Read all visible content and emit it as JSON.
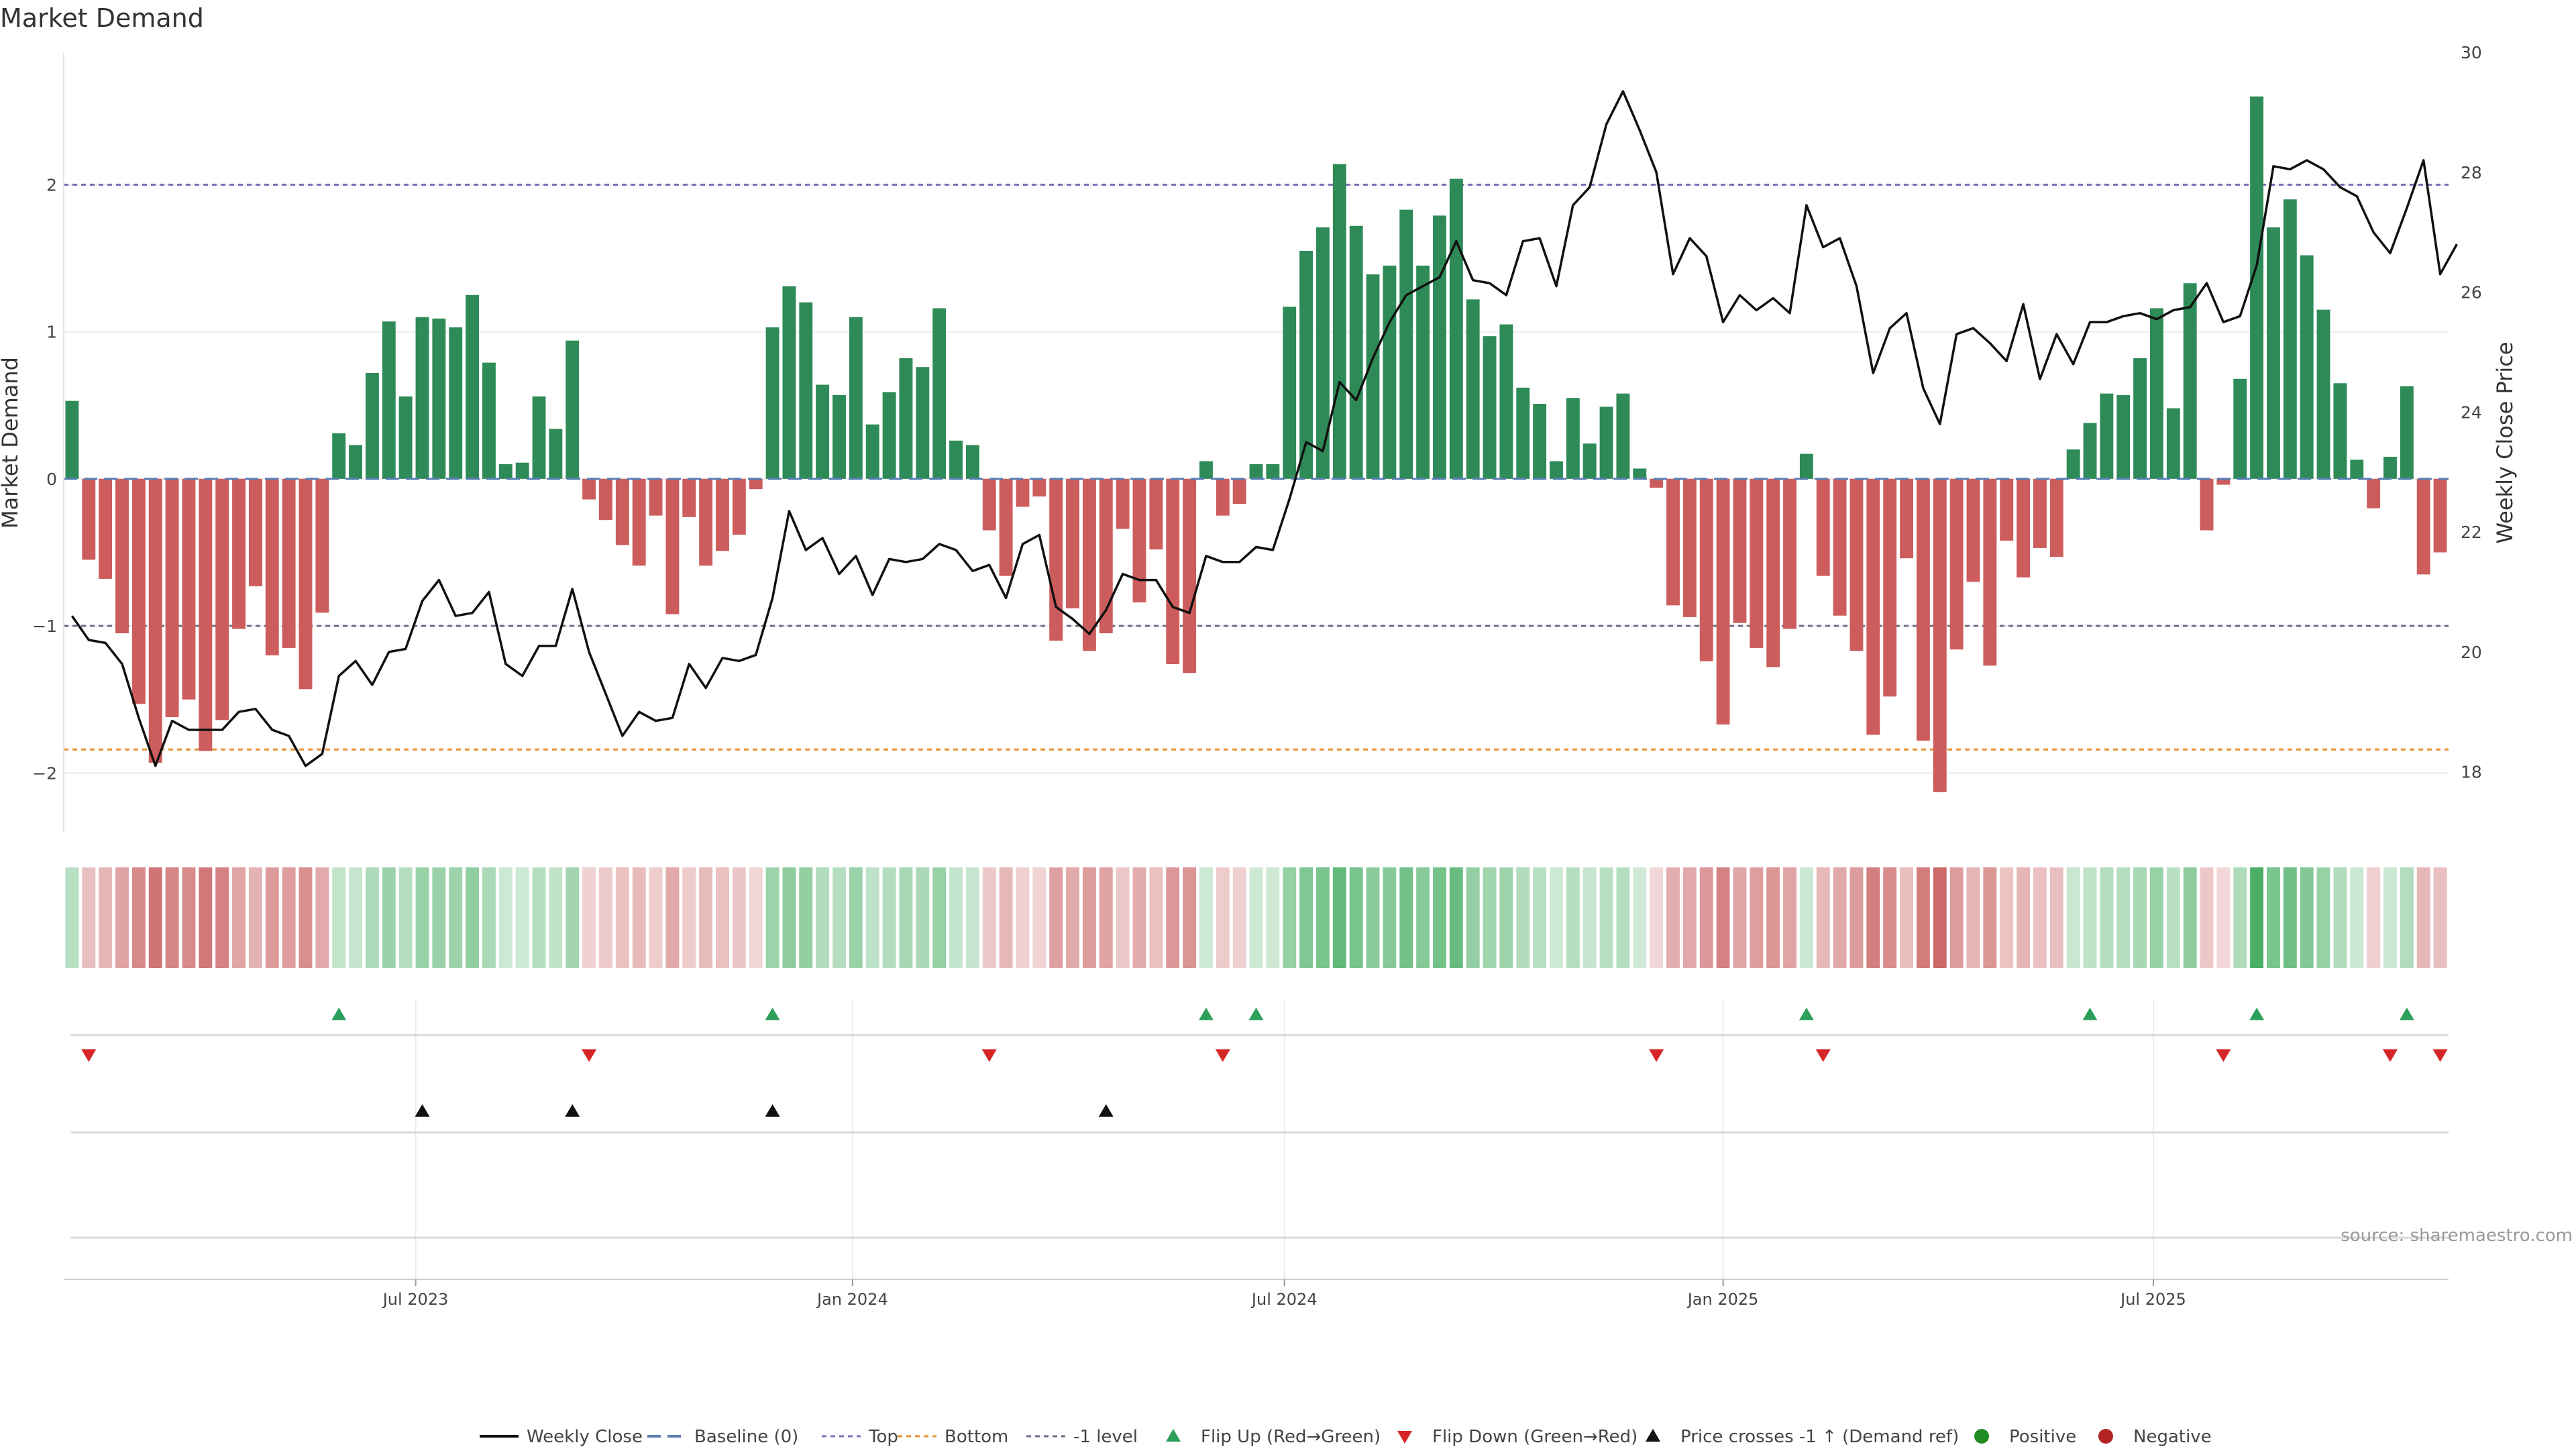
{
  "chart_data": {
    "type": "bar",
    "title": "Market Demand",
    "ylabel": "Market Demand",
    "y2label": "Weekly Close Price",
    "ylim": [
      -2.4,
      2.9
    ],
    "y2lim": [
      17.0,
      30.0
    ],
    "yticks": [
      -2,
      -1,
      0,
      1,
      2
    ],
    "yticklabels": [
      "−2",
      "−1",
      "0",
      "1",
      "2"
    ],
    "y2ticks": [
      18,
      20,
      22,
      24,
      26,
      28,
      30
    ],
    "levels": {
      "top": 2.0,
      "minus_one": -1.0,
      "bottom": -1.84
    },
    "date_ticks": [
      {
        "label": "Jul 2023",
        "index": 20.6
      },
      {
        "label": "Jan 2024",
        "index": 46.8
      },
      {
        "label": "Jul 2024",
        "index": 72.7
      },
      {
        "label": "Jan 2025",
        "index": 99.0
      },
      {
        "label": "Jul 2025",
        "index": 124.8
      }
    ],
    "demand": [
      0.53,
      -0.55,
      -0.68,
      -1.05,
      -1.53,
      -1.93,
      -1.62,
      -1.5,
      -1.85,
      -1.64,
      -1.02,
      -0.73,
      -1.2,
      -1.15,
      -1.43,
      -0.91,
      0.31,
      0.23,
      0.72,
      1.07,
      0.56,
      1.1,
      1.09,
      1.03,
      1.25,
      0.79,
      0.1,
      0.11,
      0.56,
      0.34,
      0.94,
      -0.14,
      -0.28,
      -0.45,
      -0.59,
      -0.25,
      -0.92,
      -0.26,
      -0.59,
      -0.49,
      -0.38,
      -0.07,
      1.03,
      1.31,
      1.2,
      0.64,
      0.57,
      1.1,
      0.37,
      0.59,
      0.82,
      0.76,
      1.16,
      0.26,
      0.23,
      -0.35,
      -0.66,
      -0.19,
      -0.12,
      -1.1,
      -0.88,
      -1.17,
      -1.05,
      -0.34,
      -0.84,
      -0.48,
      -1.26,
      -1.32,
      0.12,
      -0.25,
      -0.17,
      0.1,
      0.1,
      1.17,
      1.55,
      1.71,
      2.14,
      1.72,
      1.39,
      1.45,
      1.83,
      1.45,
      1.79,
      2.04,
      1.22,
      0.97,
      1.05,
      0.62,
      0.51,
      0.12,
      0.55,
      0.24,
      0.49,
      0.58,
      0.07,
      -0.06,
      -0.86,
      -0.94,
      -1.24,
      -1.67,
      -0.98,
      -1.15,
      -1.28,
      -1.02,
      0.17,
      -0.66,
      -0.93,
      -1.17,
      -1.74,
      -1.48,
      -0.54,
      -1.78,
      -2.13,
      -1.16,
      -0.7,
      -1.27,
      -0.42,
      -0.67,
      -0.47,
      -0.53,
      0.2,
      0.38,
      0.58,
      0.57,
      0.82,
      1.16,
      0.48,
      1.33,
      -0.35,
      -0.04,
      0.68,
      2.6,
      1.71,
      1.9,
      1.52,
      1.15,
      0.65,
      0.13,
      -0.2,
      0.15,
      0.63,
      -0.65,
      -0.5
    ],
    "close": [
      20.6,
      20.2,
      20.15,
      19.8,
      18.9,
      18.1,
      18.85,
      18.7,
      18.7,
      18.7,
      19.0,
      19.05,
      18.7,
      18.6,
      18.1,
      18.3,
      19.6,
      19.85,
      19.45,
      20.0,
      20.05,
      20.85,
      21.2,
      20.6,
      20.65,
      21.0,
      19.8,
      19.6,
      20.1,
      20.1,
      21.05,
      20.0,
      19.3,
      18.6,
      19.0,
      18.85,
      18.9,
      19.8,
      19.4,
      19.9,
      19.85,
      19.95,
      20.9,
      22.35,
      21.7,
      21.9,
      21.3,
      21.6,
      20.95,
      21.55,
      21.5,
      21.55,
      21.8,
      21.7,
      21.35,
      21.45,
      20.9,
      21.8,
      21.95,
      20.75,
      20.55,
      20.3,
      20.7,
      21.3,
      21.2,
      21.2,
      20.75,
      20.65,
      21.6,
      21.5,
      21.5,
      21.75,
      21.7,
      22.55,
      23.5,
      23.35,
      24.5,
      24.2,
      24.9,
      25.5,
      25.95,
      26.1,
      26.25,
      26.85,
      26.2,
      26.15,
      25.95,
      26.85,
      26.9,
      26.1,
      27.45,
      27.75,
      28.8,
      29.35,
      28.7,
      28.0,
      26.3,
      26.9,
      26.6,
      25.5,
      25.95,
      25.7,
      25.9,
      25.65,
      27.45,
      26.75,
      26.9,
      26.1,
      24.65,
      25.4,
      25.65,
      24.4,
      23.8,
      25.3,
      25.4,
      25.15,
      24.85,
      25.8,
      24.55,
      25.3,
      24.8,
      25.5,
      25.5,
      25.6,
      25.65,
      25.55,
      25.7,
      25.75,
      26.15,
      25.5,
      25.6,
      26.45,
      28.1,
      28.05,
      28.2,
      28.05,
      27.75,
      27.6,
      27.0,
      26.65,
      27.4,
      28.2,
      26.3,
      26.8
    ],
    "flip_up_index": [
      16,
      42,
      68,
      71,
      104,
      121,
      131,
      140
    ],
    "flip_down_index": [
      1,
      31,
      55,
      69,
      95,
      105,
      129,
      139,
      142
    ],
    "price_cross_index": [
      21,
      30,
      42,
      62
    ],
    "source": "source: sharemaestro.com",
    "legend": [
      {
        "key": "weekly_close",
        "label": "Weekly Close"
      },
      {
        "key": "baseline",
        "label": "Baseline (0)"
      },
      {
        "key": "top",
        "label": "Top"
      },
      {
        "key": "bottom",
        "label": "Bottom"
      },
      {
        "key": "minus_one",
        "label": "-1 level"
      },
      {
        "key": "flip_up",
        "label": "Flip Up (Red→Green)"
      },
      {
        "key": "flip_down",
        "label": "Flip Down (Green→Red)"
      },
      {
        "key": "price_cross",
        "label": "Price crosses -1 ↑ (Demand ref)"
      },
      {
        "key": "positive",
        "label": "Positive"
      },
      {
        "key": "negative",
        "label": "Negative"
      }
    ],
    "colors": {
      "positive_bar": "#2e8b57",
      "negative_bar": "#cd5c5c",
      "close_line": "#111111",
      "top_line": "#7b6fb8",
      "bottom_line": "#e8902c",
      "minus_one_line": "#706a85",
      "baseline": "#5a7fb5",
      "flip_up": "#2ca05a",
      "flip_down": "#d62728",
      "price_cross": "#111111",
      "positive_dot": "#228b22",
      "negative_dot": "#b22222"
    }
  }
}
